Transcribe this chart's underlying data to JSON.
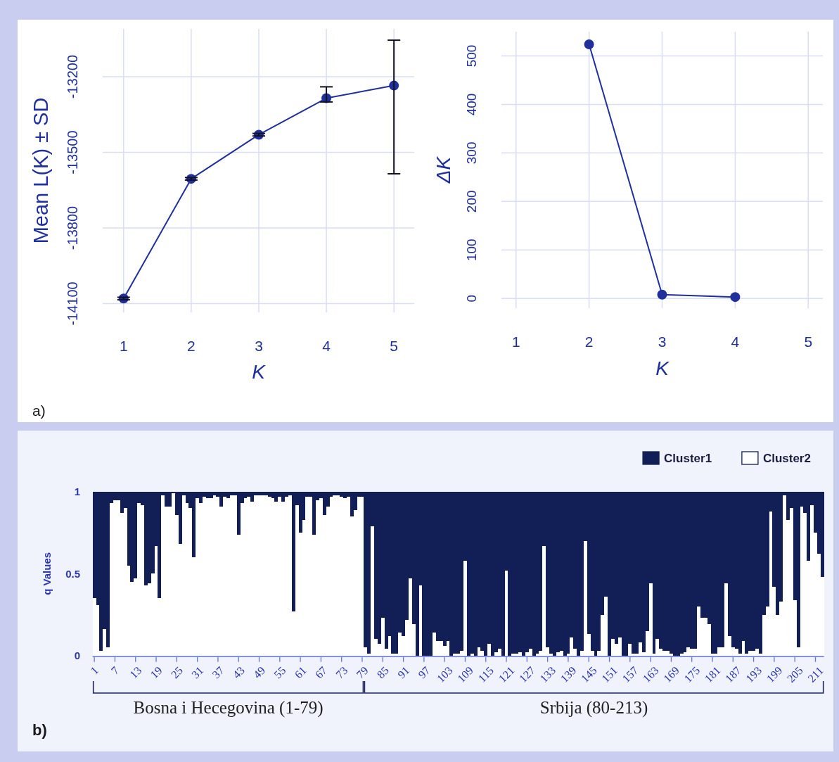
{
  "chart_data": [
    {
      "type": "line",
      "xlabel": "K",
      "ylabel": "Mean L(K) ± SD",
      "x": [
        1,
        2,
        3,
        4,
        5
      ],
      "xlim": [
        0.69,
        5.3
      ],
      "xticks": [
        1,
        2,
        3,
        4,
        5
      ],
      "ylim": [
        -14135,
        -13010
      ],
      "yticks": [
        -14100,
        -13800,
        -13500,
        -13200
      ],
      "grid": true,
      "marker": "circle",
      "series": [
        {
          "color": "#1f2f9c",
          "values": [
            -14080,
            -13605,
            -13430,
            -13285,
            -13235
          ],
          "errors": [
            5,
            5,
            5,
            [
              -13300,
              -13240
            ],
            [
              -13585,
              -13055
            ]
          ]
        }
      ],
      "annotations": [
        "a)"
      ]
    },
    {
      "type": "line",
      "xlabel": "K",
      "ylabel": "ΔK",
      "x": [
        2,
        3,
        4
      ],
      "xlim": [
        0.8,
        5.2
      ],
      "xticks": [
        1,
        2,
        3,
        4,
        5
      ],
      "ylim": [
        -20,
        550
      ],
      "yticks": [
        0,
        100,
        200,
        300,
        400,
        500
      ],
      "grid": true,
      "marker": "circle",
      "series": [
        {
          "color": "#1f2f9c",
          "values": [
            524,
            8,
            3
          ]
        }
      ]
    },
    {
      "type": "bar",
      "stacked": true,
      "ylabel": "q Values",
      "ylim": [
        0,
        1
      ],
      "yticks": [
        0,
        0.5,
        1
      ],
      "legend": "top right",
      "categories": [
        "1",
        null,
        null,
        null,
        null,
        null,
        "7",
        null,
        null,
        null,
        null,
        null,
        "13",
        null,
        null,
        null,
        null,
        null,
        "19",
        null,
        null,
        null,
        null,
        null,
        "25",
        null,
        null,
        null,
        null,
        null,
        "31",
        null,
        null,
        null,
        null,
        null,
        "37",
        null,
        null,
        null,
        null,
        null,
        "43",
        null,
        null,
        null,
        null,
        null,
        "49",
        null,
        null,
        null,
        null,
        null,
        "55",
        null,
        null,
        null,
        null,
        null,
        "61",
        null,
        null,
        null,
        null,
        null,
        "67",
        null,
        null,
        null,
        null,
        null,
        "73",
        null,
        null,
        null,
        null,
        null,
        "79",
        null,
        null,
        null,
        null,
        null,
        "85",
        null,
        null,
        null,
        null,
        null,
        "91",
        null,
        null,
        null,
        null,
        null,
        "97",
        null,
        null,
        null,
        null,
        null,
        "103",
        null,
        null,
        null,
        null,
        null,
        "109",
        null,
        null,
        null,
        null,
        null,
        "115",
        null,
        null,
        null,
        null,
        null,
        "121",
        null,
        null,
        null,
        null,
        null,
        "127",
        null,
        null,
        null,
        null,
        null,
        "133",
        null,
        null,
        null,
        null,
        null,
        "139",
        null,
        null,
        null,
        null,
        null,
        "145",
        null,
        null,
        null,
        null,
        null,
        "151",
        null,
        null,
        null,
        null,
        null,
        "157",
        null,
        null,
        null,
        null,
        null,
        "163",
        null,
        null,
        null,
        null,
        null,
        "169",
        null,
        null,
        null,
        null,
        null,
        "175",
        null,
        null,
        null,
        null,
        null,
        "181",
        null,
        null,
        null,
        null,
        null,
        "187",
        null,
        null,
        null,
        null,
        null,
        "193",
        null,
        null,
        null,
        null,
        null,
        "199",
        null,
        null,
        null,
        null,
        null,
        "205",
        null,
        null,
        null,
        null,
        null,
        "211",
        null,
        null
      ],
      "series": [
        {
          "name": "Cluster2",
          "color": "#ffffff",
          "values": [
            0.35,
            0.31,
            0.03,
            0.16,
            0.05,
            0.93,
            0.95,
            0.95,
            0.87,
            0.9,
            0.55,
            0.45,
            0.47,
            0.93,
            0.92,
            0.43,
            0.44,
            0.5,
            0.67,
            0.35,
            0.98,
            0.91,
            0.91,
            0.99,
            0.86,
            0.68,
            0.98,
            0.93,
            0.9,
            0.6,
            0.96,
            0.93,
            0.97,
            0.96,
            0.96,
            0.98,
            0.97,
            0.91,
            0.97,
            0.96,
            0.98,
            0.98,
            0.74,
            0.93,
            0.96,
            0.97,
            0.94,
            0.98,
            0.98,
            0.98,
            0.98,
            0.97,
            0.96,
            0.94,
            0.97,
            0.94,
            0.97,
            0.98,
            0.27,
            0.92,
            0.75,
            0.83,
            0.97,
            0.97,
            0.74,
            0.95,
            0.96,
            0.86,
            0.91,
            0.97,
            0.98,
            0.98,
            0.97,
            0.96,
            0.97,
            0.85,
            0.89,
            0.97,
            0.97,
            0.05,
            0.01,
            0.79,
            0.1,
            0.07,
            0.23,
            0.04,
            0.12,
            0.01,
            0.01,
            0.14,
            0.12,
            0.22,
            0.47,
            0.19,
            0,
            0.43,
            0,
            0,
            0,
            0.14,
            0.09,
            0.09,
            0.06,
            0.09,
            0,
            0.01,
            0.01,
            0.03,
            0.58,
            0,
            0.01,
            0,
            0.05,
            0.03,
            0,
            0.07,
            0,
            0.02,
            0.04,
            0,
            0.52,
            0,
            0.01,
            0.01,
            0.02,
            0,
            0.02,
            0.04,
            0,
            0.01,
            0.03,
            0.67,
            0.05,
            0.01,
            0,
            0.02,
            0.03,
            0,
            0.01,
            0.11,
            0.04,
            0,
            0.03,
            0.7,
            0.13,
            0.03,
            0,
            0.03,
            0.25,
            0.36,
            0,
            0.1,
            0.07,
            0.11,
            0,
            0,
            0.07,
            0.01,
            0.01,
            0.08,
            0.02,
            0.15,
            0.44,
            0.01,
            0.1,
            0.04,
            0.03,
            0.03,
            0.01,
            0,
            0,
            0.01,
            0.02,
            0.05,
            0.04,
            0.04,
            0.3,
            0.23,
            0.23,
            0.19,
            0.01,
            0.01,
            0.05,
            0.05,
            0.44,
            0.12,
            0.05,
            0.04,
            0.01,
            0.09,
            0.01,
            0.03,
            0.03,
            0.04,
            0.01,
            0.25,
            0.3,
            0.88,
            0.42,
            0.25,
            0.33,
            0.98,
            0.83,
            0.9,
            0.34,
            0.05,
            0.91,
            0.87,
            0.58,
            0.92,
            0.75,
            0.62,
            0.48
          ]
        },
        {
          "name": "Cluster1",
          "color": "#121f57",
          "values": [
            0.65,
            0.69,
            0.97,
            0.84,
            0.95,
            0.07,
            0.05,
            0.05,
            0.13,
            0.1,
            0.45,
            0.55,
            0.53,
            0.07,
            0.08,
            0.57,
            0.56,
            0.5,
            0.33,
            0.65,
            0.02,
            0.09,
            0.09,
            0.01,
            0.14,
            0.32,
            0.02,
            0.07,
            0.1,
            0.4,
            0.04,
            0.07,
            0.03,
            0.04,
            0.04,
            0.02,
            0.03,
            0.09,
            0.03,
            0.04,
            0.02,
            0.02,
            0.26,
            0.07,
            0.04,
            0.03,
            0.06,
            0.02,
            0.02,
            0.02,
            0.02,
            0.03,
            0.04,
            0.06,
            0.03,
            0.06,
            0.03,
            0.02,
            0.73,
            0.08,
            0.25,
            0.17,
            0.03,
            0.03,
            0.26,
            0.05,
            0.04,
            0.14,
            0.09,
            0.03,
            0.02,
            0.02,
            0.03,
            0.04,
            0.03,
            0.15,
            0.11,
            0.03,
            0.03,
            0.95,
            0.99,
            0.21,
            0.9,
            0.93,
            0.77,
            0.96,
            0.88,
            0.99,
            0.99,
            0.86,
            0.88,
            0.78,
            0.53,
            0.81,
            1,
            0.57,
            1,
            1,
            1,
            0.86,
            0.91,
            0.91,
            0.94,
            0.91,
            1,
            0.99,
            0.99,
            0.97,
            0.42,
            1,
            0.99,
            1,
            0.95,
            0.97,
            1,
            0.93,
            1,
            0.98,
            0.96,
            1,
            0.48,
            1,
            0.99,
            0.99,
            0.98,
            1,
            0.98,
            0.96,
            1,
            0.99,
            0.97,
            0.33,
            0.95,
            0.99,
            1,
            0.98,
            0.97,
            1,
            0.99,
            0.89,
            0.96,
            1,
            0.97,
            0.3,
            0.87,
            0.97,
            1,
            0.97,
            0.75,
            0.64,
            1,
            0.9,
            0.93,
            0.89,
            1,
            1,
            0.93,
            0.99,
            0.99,
            0.92,
            0.98,
            0.85,
            0.56,
            0.99,
            0.9,
            0.96,
            0.97,
            0.97,
            0.99,
            1,
            1,
            0.99,
            0.98,
            0.95,
            0.96,
            0.96,
            0.7,
            0.77,
            0.77,
            0.81,
            0.99,
            0.99,
            0.95,
            0.95,
            0.56,
            0.88,
            0.95,
            0.96,
            0.99,
            0.91,
            0.99,
            0.97,
            0.97,
            0.96,
            0.99,
            0.75,
            0.7,
            0.12,
            0.58,
            0.75,
            0.67,
            0.02,
            0.17,
            0.1,
            0.66,
            0.95,
            0.09,
            0.13,
            0.42,
            0.08,
            0.25,
            0.38,
            0.52
          ]
        }
      ],
      "annotations": [
        "Bosna i Hecegovina (1-79)",
        "Srbija (80-213)",
        "b)"
      ]
    }
  ]
}
